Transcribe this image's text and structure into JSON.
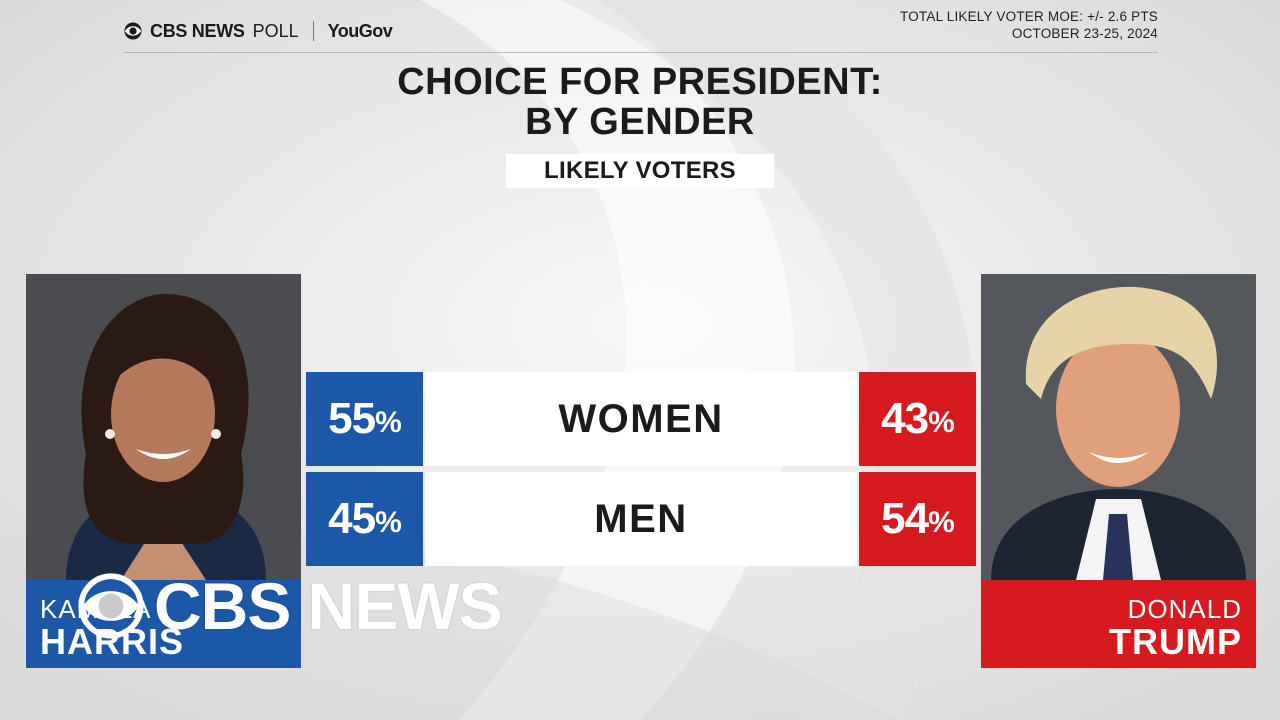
{
  "header": {
    "brand_network": "CBS NEWS",
    "brand_poll": "POLL",
    "brand_partner": "YouGov",
    "moe": "TOTAL LIKELY VOTER MOE: +/- 2.6 PTS",
    "dates": "OCTOBER 23-25, 2024"
  },
  "title_line1": "CHOICE FOR PRESIDENT:",
  "title_line2": "BY GENDER",
  "subtitle": "LIKELY VOTERS",
  "candidates": {
    "left": {
      "first": "KAMALA",
      "last": "HARRIS",
      "color": "#1c57a8",
      "image": "kamala-harris-portrait"
    },
    "right": {
      "first": "DONALD",
      "last": "TRUMP",
      "color": "#d71920",
      "image": "donald-trump-portrait"
    }
  },
  "rows": [
    {
      "group": "WOMEN",
      "left_value": "55",
      "right_value": "43",
      "unit": "%"
    },
    {
      "group": "MEN",
      "left_value": "45",
      "right_value": "54",
      "unit": "%"
    }
  ],
  "watermark": "CBS NEWS",
  "icons": {
    "logo": "cbs-eye-icon"
  }
}
